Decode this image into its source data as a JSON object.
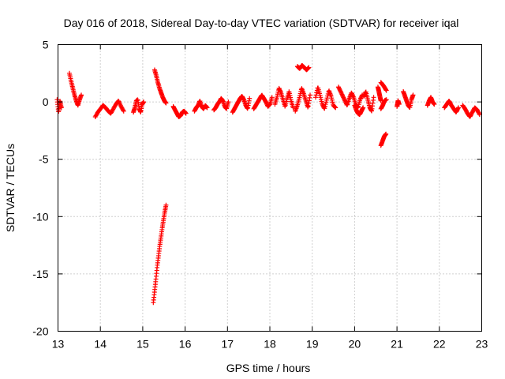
{
  "chart_data": {
    "type": "scatter",
    "title": "Day 016 of 2018, Sidereal Day-to-day VTEC variation (SDTVAR) for receiver iqal",
    "xlabel": "GPS time / hours",
    "ylabel": "SDTVAR / TECUs",
    "xlim": [
      13,
      23
    ],
    "ylim": [
      -20,
      5
    ],
    "x_ticks": [
      13,
      14,
      15,
      16,
      17,
      18,
      19,
      20,
      21,
      22,
      23
    ],
    "y_ticks": [
      -20,
      -15,
      -10,
      -5,
      0,
      5
    ],
    "grid": true,
    "marker": "plus",
    "marker_color": "#ff0000",
    "legend": "none",
    "series": [
      {
        "name": "SDTVAR",
        "segments": [
          {
            "x0": 12.98,
            "x1": 13.08,
            "y": [
              0.2,
              -0.9,
              0.1,
              -0.5
            ]
          },
          {
            "x0": 13.27,
            "x1": 13.55,
            "y": [
              2.5,
              1.8,
              1.2,
              0.6,
              0.1,
              -0.3,
              0.2,
              0.6
            ]
          },
          {
            "x0": 13.88,
            "x1": 14.55,
            "y": [
              -1.3,
              -0.9,
              -0.6,
              -0.3,
              -0.5,
              -0.8,
              -1.0,
              -0.6,
              -0.2,
              0.1,
              -0.4,
              -0.8
            ]
          },
          {
            "x0": 14.78,
            "x1": 15.02,
            "y": [
              -0.9,
              -0.5,
              0.1,
              0.2,
              -0.6,
              -0.9,
              -0.2,
              0.0
            ]
          },
          {
            "x0": 15.28,
            "x1": 15.55,
            "y": [
              2.8,
              2.3,
              1.7,
              1.2,
              0.8,
              0.4,
              0.1,
              -0.1
            ]
          },
          {
            "x0": 15.72,
            "x1": 16.02,
            "y": [
              -0.4,
              -0.7,
              -1.0,
              -1.3,
              -1.2,
              -0.9,
              -0.8,
              -1.0
            ]
          },
          {
            "x0": 16.22,
            "x1": 16.52,
            "y": [
              -0.8,
              -0.5,
              -0.3,
              0.1,
              -0.4,
              -0.6,
              -0.3,
              -0.5
            ]
          },
          {
            "x0": 16.68,
            "x1": 17.02,
            "y": [
              -0.7,
              -0.5,
              -0.2,
              0.0,
              0.3,
              0.1,
              -0.4,
              -0.6,
              0.0
            ]
          },
          {
            "x0": 17.12,
            "x1": 17.52,
            "y": [
              -0.9,
              -0.6,
              -0.3,
              0.0,
              0.3,
              0.5,
              0.2,
              -0.3,
              -0.6,
              0.3
            ]
          },
          {
            "x0": 17.62,
            "x1": 18.05,
            "y": [
              -0.6,
              -0.3,
              0.0,
              0.3,
              0.6,
              0.3,
              0.0,
              -0.4,
              -0.2,
              0.4
            ]
          },
          {
            "x0": 18.12,
            "x1": 18.55,
            "y": [
              -0.2,
              0.4,
              1.2,
              0.8,
              0.2,
              -0.4,
              0.3,
              0.9,
              0.1,
              -0.5
            ]
          },
          {
            "x0": 18.65,
            "x1": 18.92,
            "y": [
              3.1,
              2.9,
              3.2,
              3.0,
              2.8,
              3.0
            ]
          },
          {
            "x0": 18.6,
            "x1": 18.95,
            "y": [
              -0.8,
              -0.3,
              0.4,
              1.2,
              0.7,
              0.1,
              -0.5,
              0.6
            ]
          },
          {
            "x0": 19.08,
            "x1": 19.55,
            "y": [
              0.4,
              1.3,
              0.6,
              -0.2,
              -0.6,
              0.2,
              1.0,
              0.5,
              -0.3,
              -0.5
            ]
          },
          {
            "x0": 19.62,
            "x1": 20.18,
            "y": [
              1.3,
              0.9,
              0.5,
              0.1,
              -0.3,
              0.3,
              0.8,
              0.4,
              -0.2,
              -0.5,
              0.2,
              0.6
            ]
          },
          {
            "x0": 20.0,
            "x1": 20.2,
            "y": [
              -0.3,
              -0.7,
              -1.0,
              -1.1,
              -0.8,
              -0.5
            ]
          },
          {
            "x0": 20.22,
            "x1": 20.45,
            "y": [
              0.5,
              0.9,
              0.2,
              -0.5,
              -0.8,
              0.4
            ]
          },
          {
            "x0": 20.55,
            "x1": 20.62,
            "y": [
              1.3,
              0.9,
              0.5,
              0.1
            ]
          },
          {
            "x0": 20.62,
            "x1": 20.75,
            "y": [
              1.7,
              1.4,
              1.0
            ]
          },
          {
            "x0": 20.62,
            "x1": 20.75,
            "y": [
              -0.6,
              -0.3,
              0.1,
              0.2
            ]
          },
          {
            "x0": 20.62,
            "x1": 20.74,
            "y": [
              -3.8,
              -3.4,
              -3.0,
              -2.8
            ]
          },
          {
            "x0": 21.0,
            "x1": 21.05,
            "y": [
              -0.4,
              0.1,
              -0.2
            ]
          },
          {
            "x0": 21.15,
            "x1": 21.38,
            "y": [
              0.9,
              0.5,
              0.1,
              -0.3,
              -0.5,
              0.2,
              0.6
            ]
          },
          {
            "x0": 21.72,
            "x1": 21.88,
            "y": [
              -0.3,
              0.1,
              0.4,
              0.0,
              -0.2
            ]
          },
          {
            "x0": 22.12,
            "x1": 22.45,
            "y": [
              -0.5,
              -0.2,
              0.1,
              -0.3,
              -0.6,
              -0.9,
              -0.5
            ]
          },
          {
            "x0": 22.55,
            "x1": 22.95,
            "y": [
              -0.3,
              -0.6,
              -1.0,
              -1.3,
              -0.9,
              -0.5,
              -0.7,
              -1.1
            ]
          },
          {
            "x0": 15.25,
            "x1": 15.55,
            "y": [
              -17.5,
              -16.5,
              -15.5,
              -14.4,
              -13.5,
              -12.6,
              -11.8,
              -11.0,
              -10.3,
              -9.6,
              -9.0
            ]
          }
        ]
      }
    ]
  }
}
